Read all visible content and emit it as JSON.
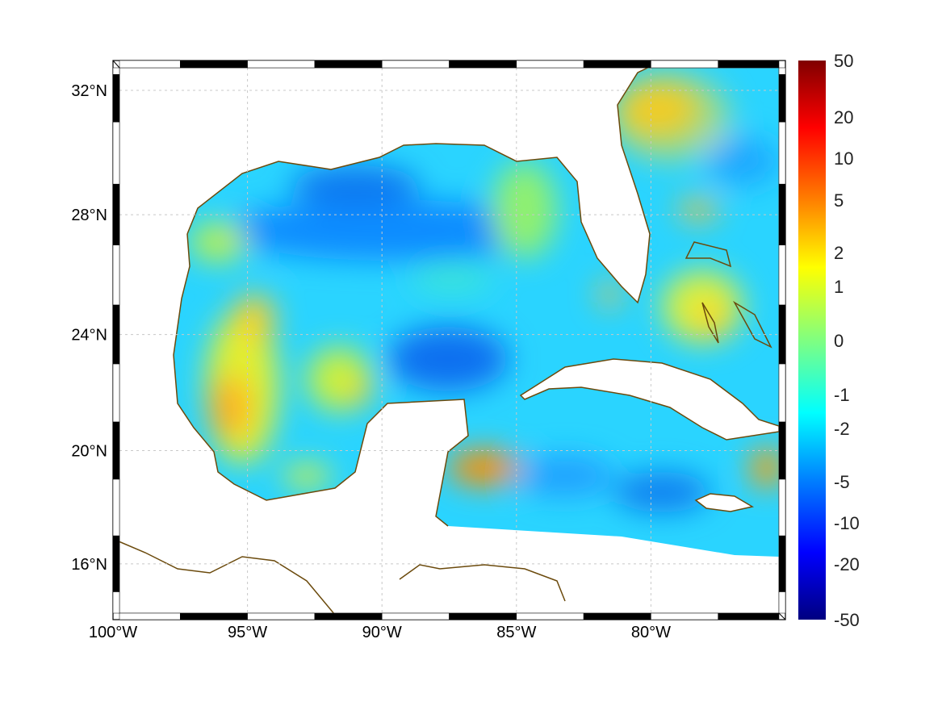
{
  "map": {
    "lat_ticks": [
      "32°N",
      "28°N",
      "24°N",
      "20°N",
      "16°N"
    ],
    "lat_values": [
      32,
      28,
      24,
      20,
      16
    ],
    "lon_ticks": [
      "100°W",
      "95°W",
      "90°W",
      "85°W",
      "80°W"
    ],
    "lon_values": [
      -100,
      -95,
      -90,
      -85,
      -80
    ],
    "lon_range": [
      -100,
      -75
    ],
    "lat_range": [
      14.1,
      33
    ],
    "coast_color": "#6b4a0c"
  },
  "colorbar": {
    "labels": [
      "50",
      "20",
      "10",
      "5",
      "2",
      "1",
      "0",
      "-1",
      "-2",
      "-5",
      "-10",
      "-20",
      "-50"
    ],
    "colormap": [
      "#800000",
      "#ff0000",
      "#ff8000",
      "#ffff00",
      "#80ff80",
      "#00ffff",
      "#0080ff",
      "#0000ff",
      "#000080"
    ]
  }
}
